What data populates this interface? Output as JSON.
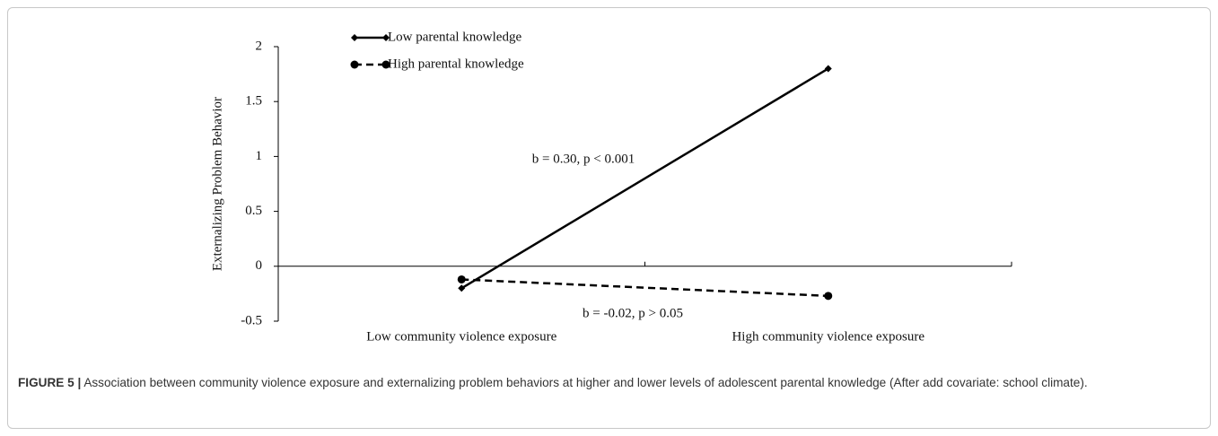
{
  "chart_data": {
    "type": "line",
    "ylabel": "Externalizing Problem Behavior",
    "categories": [
      "Low community violence exposure",
      "High community violence exposure"
    ],
    "series": [
      {
        "name": "Low parental knowledge",
        "color": "#000000",
        "dash": "solid",
        "marker": "diamond",
        "values": [
          -0.2,
          1.8
        ]
      },
      {
        "name": "High parental knowledge",
        "color": "#000000",
        "dash": "dashed",
        "marker": "circle",
        "values": [
          -0.12,
          -0.27
        ]
      }
    ],
    "annotations": [
      "b = 0.30, p < 0.001",
      "b = -0.02, p > 0.05"
    ],
    "ylim": [
      -0.5,
      2
    ],
    "yticks": [
      -0.5,
      0,
      0.5,
      1,
      1.5,
      2
    ],
    "grid": false,
    "legend": "top-left"
  },
  "caption": {
    "label": "FIGURE 5 |",
    "text": "Association between community violence exposure and externalizing problem behaviors at higher and lower levels of adolescent parental knowledge (After add covariate: school climate)."
  }
}
